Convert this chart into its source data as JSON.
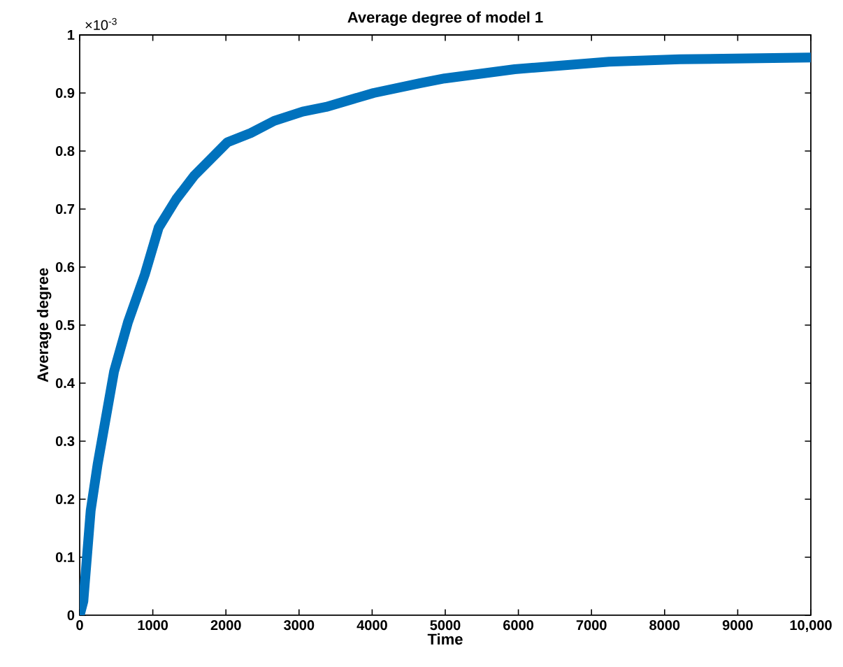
{
  "chart_data": {
    "type": "line",
    "title": "Average degree of model 1",
    "xlabel": "Time",
    "ylabel": "Average degree",
    "annotations": [
      "×10$^{-3}$"
    ],
    "x": [
      0,
      50,
      150,
      245,
      470,
      660,
      890,
      1080,
      1320,
      1570,
      2020,
      2340,
      2660,
      3050,
      3370,
      4020,
      4660,
      4990,
      5950,
      7240,
      8210,
      10000
    ],
    "series": [
      {
        "color": "#0072bd",
        "values": [
          0,
          0.024,
          0.18,
          0.26,
          0.42,
          0.505,
          0.587,
          0.668,
          0.717,
          0.758,
          0.815,
          0.831,
          0.852,
          0.868,
          0.876,
          0.9,
          0.917,
          0.925,
          0.941,
          0.954,
          0.958,
          0.961
        ]
      }
    ],
    "xlim": [
      0,
      10000
    ],
    "ylim": [
      0,
      1
    ],
    "xticks": [
      0,
      1000,
      2000,
      3000,
      4000,
      5000,
      6000,
      7000,
      8000,
      9000,
      {
        "value": 10000,
        "label": "10,000"
      }
    ],
    "yticks": [
      0,
      0.1,
      0.2,
      0.3,
      0.4,
      0.5,
      0.6,
      0.7,
      0.8,
      0.9,
      1
    ],
    "grid": false,
    "marker": "none",
    "line_style": "solid"
  }
}
